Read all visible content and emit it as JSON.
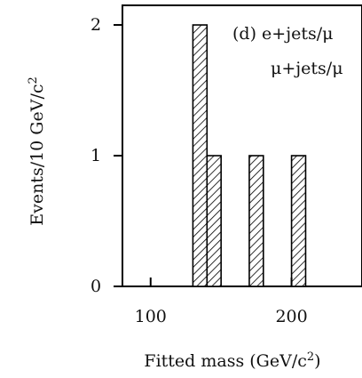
{
  "chart_data": {
    "type": "bar",
    "panel_label": "(d) e+jets/μ",
    "legend": [
      {
        "name": "μ+jets/μ",
        "pattern": "hatched"
      }
    ],
    "xlabel": "Fitted mass (GeV/c",
    "xlabel_sup": "2",
    "xlabel_close": ")",
    "ylabel": "Events/10 GeV/c",
    "ylabel_sup": "2",
    "xlim": [
      80,
      250
    ],
    "ylim": [
      0,
      2.15
    ],
    "x_ticks": [
      {
        "value": 100,
        "label": "100"
      },
      {
        "value": 200,
        "label": "200"
      }
    ],
    "y_ticks": [
      {
        "value": 0,
        "label": "0"
      },
      {
        "value": 1,
        "label": "1"
      },
      {
        "value": 2,
        "label": "2"
      }
    ],
    "bin_width": 10,
    "bins": [
      {
        "x_low": 130,
        "x_high": 140,
        "value": 2
      },
      {
        "x_low": 140,
        "x_high": 150,
        "value": 1
      },
      {
        "x_low": 170,
        "x_high": 180,
        "value": 1
      },
      {
        "x_low": 200,
        "x_high": 210,
        "value": 1
      }
    ],
    "colors": {
      "axis": "#000000",
      "hatch": "#000000",
      "fill": "#ffffff"
    }
  }
}
